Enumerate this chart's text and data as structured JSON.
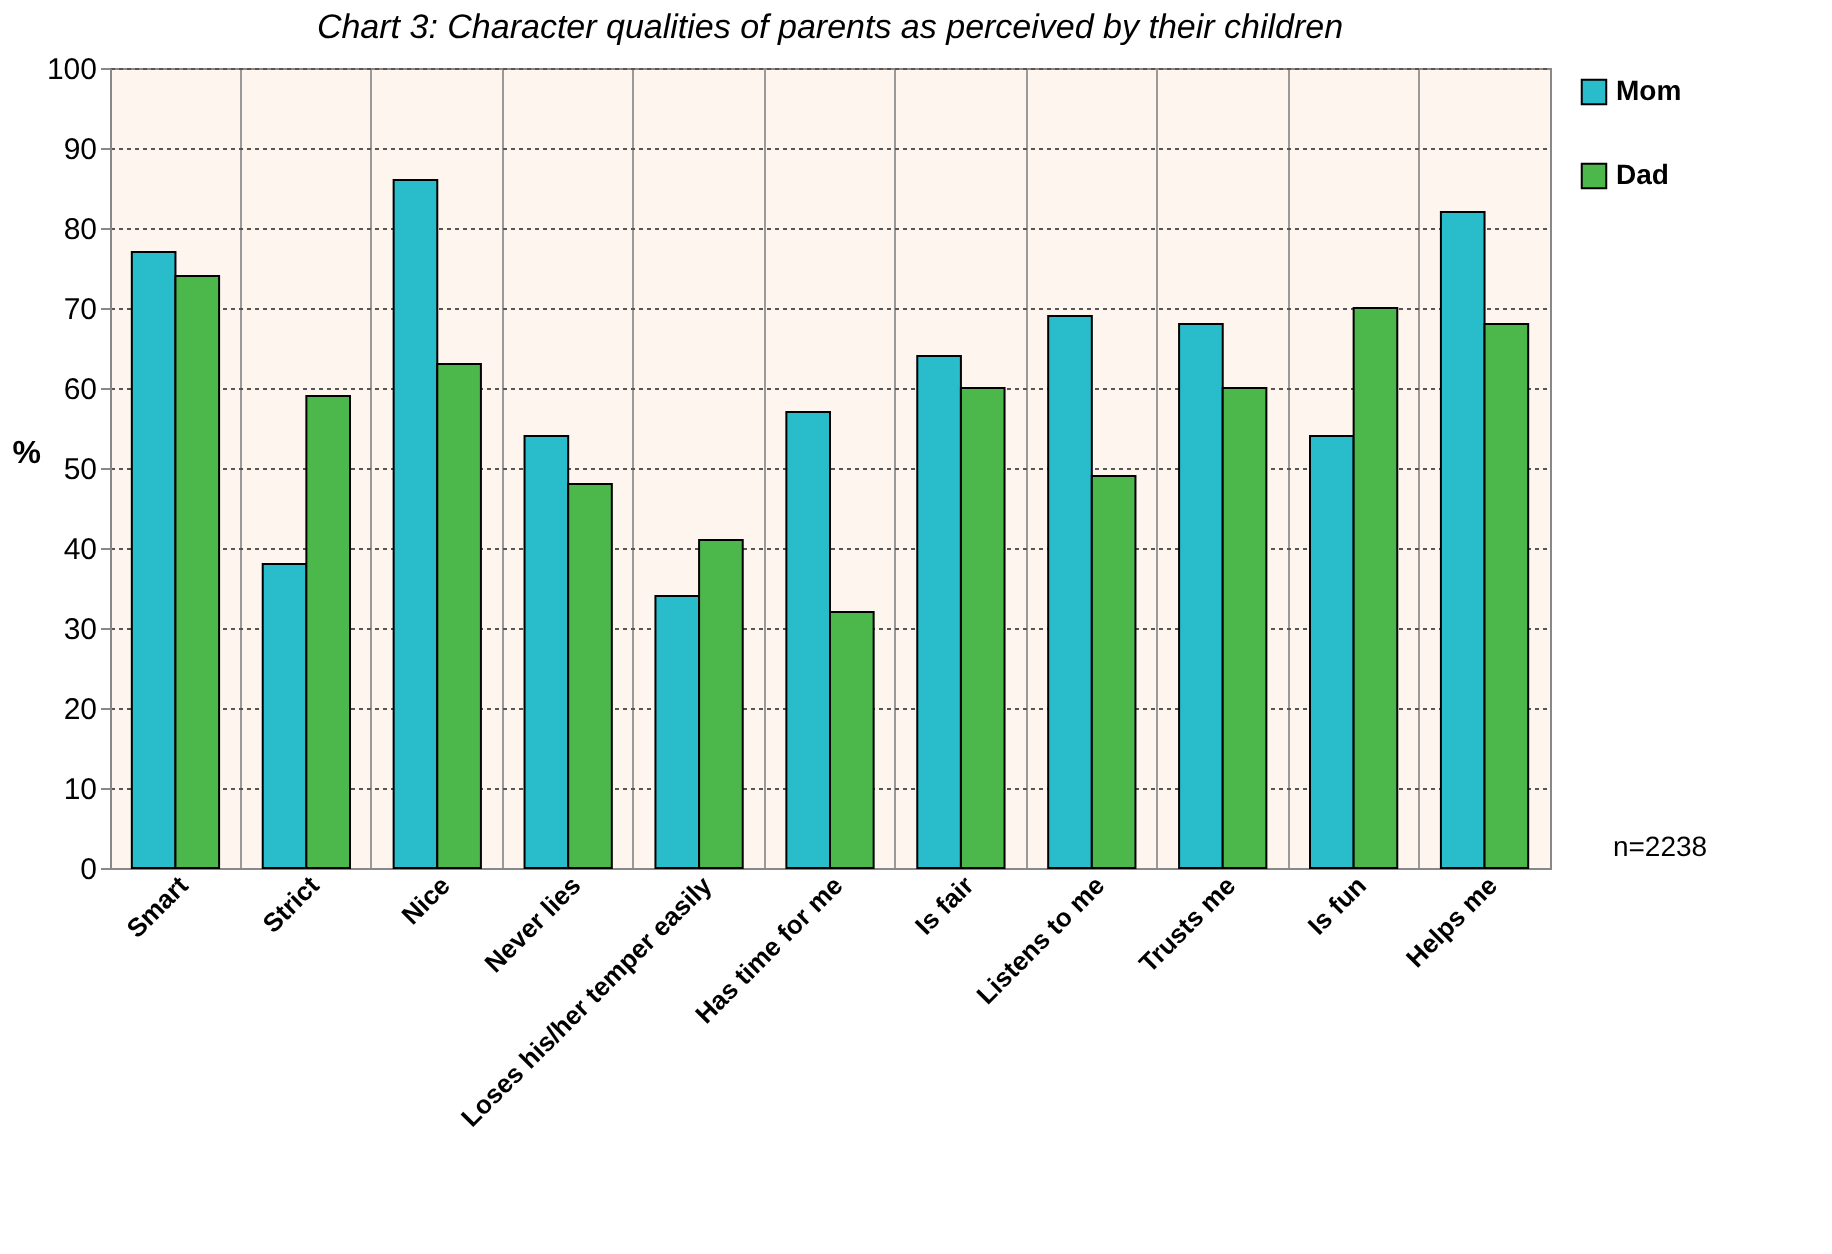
{
  "chart_data": {
    "type": "bar",
    "title": "Chart 3: Character qualities of parents as perceived by their children",
    "ylabel": "%",
    "categories": [
      "Smart",
      "Strict",
      "Nice",
      "Never lies",
      "Loses his/her temper easily",
      "Has time for me",
      "Is fair",
      "Listens to me",
      "Trusts me",
      "Is fun",
      "Helps me"
    ],
    "series": [
      {
        "name": "Mom",
        "color": "#29bdcc",
        "values": [
          77,
          38,
          86,
          54,
          34,
          57,
          64,
          69,
          68,
          54,
          82
        ]
      },
      {
        "name": "Dad",
        "color": "#4cb84c",
        "values": [
          74,
          59,
          63,
          48,
          41,
          32,
          60,
          49,
          60,
          70,
          68
        ]
      }
    ],
    "ylim": [
      0,
      100
    ],
    "yticks": [
      0,
      10,
      20,
      30,
      40,
      50,
      60,
      70,
      80,
      90,
      100
    ],
    "grid": true,
    "legend": "top right",
    "annotations": [
      "n=2238"
    ]
  }
}
